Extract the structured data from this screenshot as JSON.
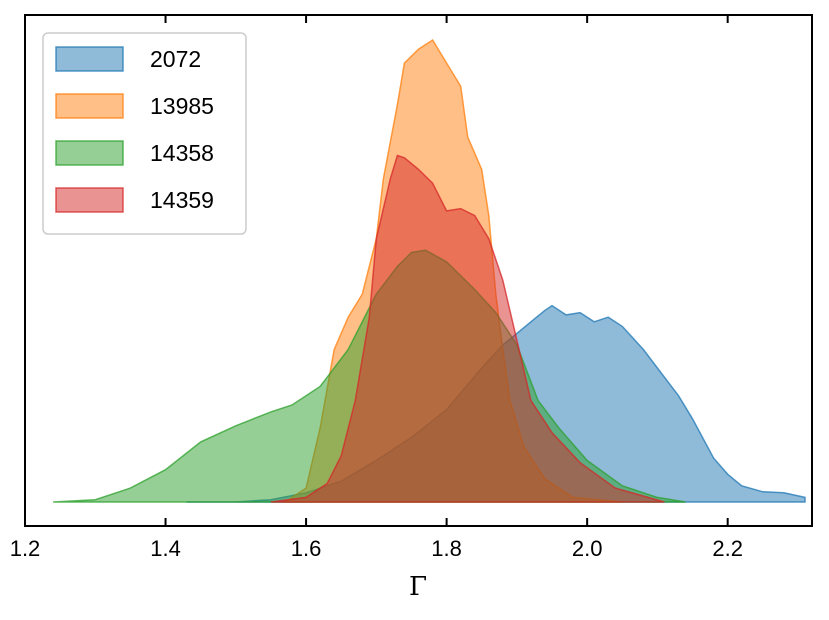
{
  "chart_data": {
    "type": "area",
    "title": "",
    "xlabel": "Γ",
    "ylabel": "",
    "xlim": [
      1.2,
      2.32
    ],
    "ylim": [
      0,
      1.0
    ],
    "xticks": [
      1.2,
      1.4,
      1.6,
      1.8,
      2.0,
      2.2
    ],
    "xtick_labels": [
      "1.2",
      "1.4",
      "1.6",
      "1.8",
      "2.0",
      "2.2"
    ],
    "yticks_shown": false,
    "grid": false,
    "legend_position": "top-left",
    "series": [
      {
        "name": "2072",
        "color": "#1f77b4",
        "points": [
          [
            1.43,
            0.0
          ],
          [
            1.5,
            0.0
          ],
          [
            1.55,
            0.005
          ],
          [
            1.6,
            0.02
          ],
          [
            1.65,
            0.045
          ],
          [
            1.7,
            0.09
          ],
          [
            1.75,
            0.14
          ],
          [
            1.8,
            0.2
          ],
          [
            1.85,
            0.29
          ],
          [
            1.88,
            0.34
          ],
          [
            1.9,
            0.365
          ],
          [
            1.92,
            0.39
          ],
          [
            1.94,
            0.415
          ],
          [
            1.95,
            0.425
          ],
          [
            1.97,
            0.405
          ],
          [
            1.99,
            0.41
          ],
          [
            2.01,
            0.39
          ],
          [
            2.03,
            0.4
          ],
          [
            2.05,
            0.38
          ],
          [
            2.08,
            0.33
          ],
          [
            2.1,
            0.29
          ],
          [
            2.13,
            0.23
          ],
          [
            2.15,
            0.18
          ],
          [
            2.18,
            0.095
          ],
          [
            2.2,
            0.06
          ],
          [
            2.22,
            0.035
          ],
          [
            2.25,
            0.022
          ],
          [
            2.28,
            0.02
          ],
          [
            2.31,
            0.01
          ],
          [
            2.31,
            0.0
          ]
        ]
      },
      {
        "name": "13985",
        "color": "#ff7f0e",
        "points": [
          [
            1.57,
            0.0
          ],
          [
            1.6,
            0.03
          ],
          [
            1.62,
            0.16
          ],
          [
            1.64,
            0.33
          ],
          [
            1.66,
            0.4
          ],
          [
            1.68,
            0.45
          ],
          [
            1.7,
            0.57
          ],
          [
            1.71,
            0.7
          ],
          [
            1.73,
            0.86
          ],
          [
            1.74,
            0.95
          ],
          [
            1.76,
            0.98
          ],
          [
            1.78,
            1.0
          ],
          [
            1.8,
            0.95
          ],
          [
            1.82,
            0.9
          ],
          [
            1.83,
            0.79
          ],
          [
            1.85,
            0.72
          ],
          [
            1.86,
            0.62
          ],
          [
            1.87,
            0.45
          ],
          [
            1.88,
            0.33
          ],
          [
            1.89,
            0.22
          ],
          [
            1.91,
            0.12
          ],
          [
            1.94,
            0.05
          ],
          [
            1.98,
            0.01
          ],
          [
            2.05,
            0.0
          ]
        ]
      },
      {
        "name": "14358",
        "color": "#2ca02c",
        "points": [
          [
            1.24,
            0.0
          ],
          [
            1.3,
            0.005
          ],
          [
            1.35,
            0.03
          ],
          [
            1.4,
            0.07
          ],
          [
            1.45,
            0.13
          ],
          [
            1.5,
            0.165
          ],
          [
            1.55,
            0.195
          ],
          [
            1.58,
            0.21
          ],
          [
            1.62,
            0.25
          ],
          [
            1.66,
            0.33
          ],
          [
            1.7,
            0.45
          ],
          [
            1.73,
            0.51
          ],
          [
            1.75,
            0.54
          ],
          [
            1.77,
            0.545
          ],
          [
            1.8,
            0.52
          ],
          [
            1.84,
            0.46
          ],
          [
            1.87,
            0.41
          ],
          [
            1.9,
            0.34
          ],
          [
            1.93,
            0.22
          ],
          [
            1.96,
            0.16
          ],
          [
            2.0,
            0.09
          ],
          [
            2.05,
            0.035
          ],
          [
            2.1,
            0.01
          ],
          [
            2.14,
            0.0
          ]
        ]
      },
      {
        "name": "14359",
        "color": "#d62728",
        "points": [
          [
            1.55,
            0.0
          ],
          [
            1.6,
            0.01
          ],
          [
            1.63,
            0.04
          ],
          [
            1.65,
            0.1
          ],
          [
            1.67,
            0.22
          ],
          [
            1.69,
            0.4
          ],
          [
            1.7,
            0.57
          ],
          [
            1.72,
            0.7
          ],
          [
            1.73,
            0.75
          ],
          [
            1.74,
            0.745
          ],
          [
            1.76,
            0.72
          ],
          [
            1.78,
            0.69
          ],
          [
            1.8,
            0.63
          ],
          [
            1.82,
            0.635
          ],
          [
            1.84,
            0.62
          ],
          [
            1.86,
            0.57
          ],
          [
            1.88,
            0.48
          ],
          [
            1.9,
            0.35
          ],
          [
            1.92,
            0.22
          ],
          [
            1.95,
            0.15
          ],
          [
            1.99,
            0.085
          ],
          [
            2.04,
            0.03
          ],
          [
            2.11,
            0.0
          ]
        ]
      }
    ]
  }
}
